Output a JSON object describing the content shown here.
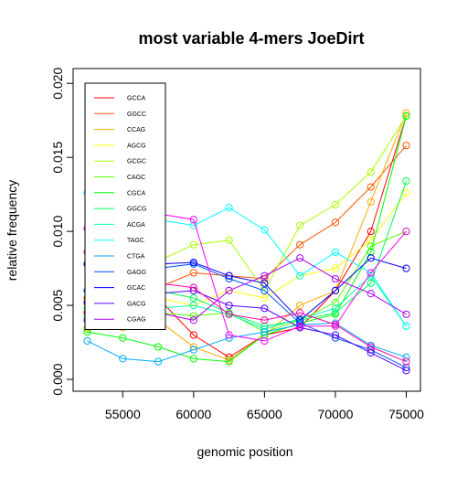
{
  "chart_data": {
    "type": "line",
    "title": "most variable 4-mers JoeDirt",
    "xlabel": "genomic position",
    "ylabel": "relative frequency",
    "xlim": [
      51500,
      76000
    ],
    "ylim": [
      -0.0008,
      0.021
    ],
    "x_ticks": [
      55000,
      60000,
      65000,
      70000,
      75000
    ],
    "x_tick_labels": [
      "55000",
      "60000",
      "65000",
      "70000",
      "75000"
    ],
    "y_ticks": [
      0.0,
      0.005,
      0.01,
      0.015,
      0.02
    ],
    "y_tick_labels": [
      "0.000",
      "0.005",
      "0.010",
      "0.015",
      "0.020"
    ],
    "legend_position": "top-left",
    "markers": "open-circle",
    "x": [
      52500,
      55000,
      57500,
      60000,
      62500,
      65000,
      67500,
      70000,
      72500,
      75000
    ],
    "series": [
      {
        "name": "GCCA",
        "color": "#FF0000",
        "values": [
          0.0045,
          0.005,
          0.0055,
          0.003,
          0.0015,
          0.003,
          0.0035,
          0.006,
          0.01,
          0.0178
        ]
      },
      {
        "name": "GGCC",
        "color": "#FF5500",
        "values": [
          0.0055,
          0.006,
          0.0062,
          0.0072,
          0.007,
          0.0068,
          0.0091,
          0.0106,
          0.013,
          0.0158
        ]
      },
      {
        "name": "CCAG",
        "color": "#FFAA00",
        "values": [
          0.0035,
          0.0035,
          0.004,
          0.0022,
          0.0013,
          0.003,
          0.005,
          0.006,
          0.012,
          0.018
        ]
      },
      {
        "name": "AGCG",
        "color": "#FFFF00",
        "values": [
          0.004,
          0.0045,
          0.0055,
          0.005,
          0.006,
          0.0055,
          0.007,
          0.0075,
          0.0094,
          0.0126
        ]
      },
      {
        "name": "GCGC",
        "color": "#AAFF00",
        "values": [
          0.005,
          0.007,
          0.008,
          0.0091,
          0.0094,
          0.006,
          0.0104,
          0.0118,
          0.014,
          0.0178
        ]
      },
      {
        "name": "CAGC",
        "color": "#55FF00",
        "values": [
          0.0034,
          0.004,
          0.0045,
          0.0043,
          0.0045,
          0.0032,
          0.004,
          0.0052,
          0.009,
          0.01
        ]
      },
      {
        "name": "CGCA",
        "color": "#00FF00",
        "values": [
          0.0032,
          0.0028,
          0.0022,
          0.0014,
          0.0012,
          0.003,
          0.0038,
          0.0044,
          0.0086,
          0.0178
        ]
      },
      {
        "name": "GGCG",
        "color": "#00FF55",
        "values": [
          0.0048,
          0.0055,
          0.006,
          0.0055,
          0.0045,
          0.0036,
          0.004,
          0.0045,
          0.0065,
          0.0134
        ]
      },
      {
        "name": "ACGA",
        "color": "#00FFAA",
        "values": [
          0.0042,
          0.0046,
          0.0048,
          0.005,
          0.0044,
          0.0034,
          0.0041,
          0.0048,
          0.007,
          0.0036
        ]
      },
      {
        "name": "TAGC",
        "color": "#00FFFF",
        "values": [
          0.0126,
          0.011,
          0.0108,
          0.0104,
          0.0116,
          0.0101,
          0.007,
          0.0086,
          0.0072,
          0.0036
        ]
      },
      {
        "name": "CTGA",
        "color": "#00AAFF",
        "values": [
          0.0026,
          0.0014,
          0.0012,
          0.002,
          0.0028,
          0.0032,
          0.0037,
          0.0038,
          0.0023,
          0.0015
        ]
      },
      {
        "name": "GAGG",
        "color": "#0055FF",
        "values": [
          0.006,
          0.0068,
          0.0075,
          0.0078,
          0.0068,
          0.006,
          0.0038,
          0.0028,
          0.002,
          0.0008
        ]
      },
      {
        "name": "GCAC",
        "color": "#0000FF",
        "values": [
          0.0078,
          0.0075,
          0.0078,
          0.0079,
          0.007,
          0.0065,
          0.004,
          0.006,
          0.0082,
          0.0075
        ]
      },
      {
        "name": "GACG",
        "color": "#5500FF",
        "values": [
          0.0052,
          0.005,
          0.0058,
          0.006,
          0.005,
          0.0048,
          0.0035,
          0.003,
          0.0018,
          0.0006
        ]
      },
      {
        "name": "CGAG",
        "color": "#AA00FF",
        "values": [
          0.004,
          0.005,
          0.0045,
          0.004,
          0.006,
          0.007,
          0.0082,
          0.0068,
          0.0058,
          0.0044
        ]
      },
      {
        "name": "",
        "color": "#FF00FF",
        "values": [
          0.0102,
          0.011,
          0.0112,
          0.0108,
          0.003,
          0.0026,
          0.0036,
          0.0036,
          0.0072,
          0.01
        ]
      },
      {
        "name": "",
        "color": "#FF00AA",
        "values": [
          0.0086,
          0.0075,
          0.0065,
          0.0062,
          0.0044,
          0.004,
          0.0045,
          0.0037,
          0.0022,
          0.0012
        ]
      }
    ]
  }
}
